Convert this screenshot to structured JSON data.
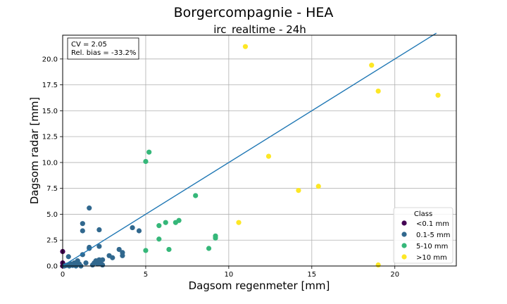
{
  "chart_data": {
    "type": "scatter",
    "title": "Borgercompagnie - HEA",
    "subtitle": "irc_realtime - 24h",
    "xlabel": "Dagsom regenmeter [mm]",
    "ylabel": "Dagsom radar [mm]",
    "xlim": [
      0,
      23.7
    ],
    "ylim": [
      0,
      22.3
    ],
    "x_ticks": [
      "0",
      "5",
      "10",
      "15",
      "20"
    ],
    "y_ticks": [
      "0.0",
      "2.5",
      "5.0",
      "7.5",
      "10.0",
      "12.5",
      "15.0",
      "17.5",
      "20.0"
    ],
    "grid": true,
    "stats": [
      "CV = 2.05",
      "Rel. bias = -33.2%"
    ],
    "fit_line": {
      "slope": 1.0,
      "x": [
        0,
        22.5
      ],
      "color": "#1f77b4"
    },
    "legend": {
      "title": "Class",
      "position": "lower-right"
    },
    "series": [
      {
        "name": "<0.1 mm",
        "color": "#440154",
        "points": [
          [
            0.0,
            0.0
          ],
          [
            0.0,
            0.3
          ],
          [
            0.0,
            1.4
          ],
          [
            0.05,
            0.1
          ]
        ]
      },
      {
        "name": "0.1-5 mm",
        "color": "#31688e",
        "points": [
          [
            0.1,
            0.0
          ],
          [
            0.2,
            0.05
          ],
          [
            0.3,
            0.1
          ],
          [
            0.4,
            0.0
          ],
          [
            0.5,
            0.2
          ],
          [
            0.6,
            0.1
          ],
          [
            0.7,
            0.3
          ],
          [
            0.8,
            0.0
          ],
          [
            0.9,
            0.5
          ],
          [
            1.0,
            0.2
          ],
          [
            1.1,
            0.0
          ],
          [
            0.35,
            0.9
          ],
          [
            0.8,
            0.3
          ],
          [
            0.6,
            0.05
          ],
          [
            1.2,
            4.1
          ],
          [
            1.2,
            3.4
          ],
          [
            1.2,
            1.1
          ],
          [
            1.4,
            0.3
          ],
          [
            1.6,
            1.7
          ],
          [
            1.6,
            1.8
          ],
          [
            1.6,
            5.6
          ],
          [
            1.8,
            0.1
          ],
          [
            1.9,
            0.3
          ],
          [
            2.0,
            0.5
          ],
          [
            2.1,
            0.2
          ],
          [
            2.2,
            0.6
          ],
          [
            2.2,
            1.9
          ],
          [
            2.2,
            3.5
          ],
          [
            2.3,
            0.2
          ],
          [
            2.4,
            0.6
          ],
          [
            2.4,
            0.1
          ],
          [
            2.8,
            1.0
          ],
          [
            3.0,
            0.8
          ],
          [
            3.4,
            1.6
          ],
          [
            3.6,
            1.3
          ],
          [
            3.6,
            1.0
          ],
          [
            4.2,
            3.7
          ],
          [
            4.6,
            3.4
          ]
        ]
      },
      {
        "name": "5-10 mm",
        "color": "#35b779",
        "points": [
          [
            5.0,
            10.1
          ],
          [
            5.2,
            11.0
          ],
          [
            5.0,
            1.5
          ],
          [
            5.8,
            3.9
          ],
          [
            5.8,
            2.6
          ],
          [
            6.2,
            4.2
          ],
          [
            6.4,
            1.6
          ],
          [
            6.8,
            4.2
          ],
          [
            7.0,
            4.4
          ],
          [
            8.0,
            6.8
          ],
          [
            8.8,
            1.7
          ],
          [
            9.2,
            2.9
          ],
          [
            9.2,
            2.7
          ]
        ]
      },
      {
        "name": ">10 mm",
        "color": "#fde725",
        "points": [
          [
            10.6,
            4.2
          ],
          [
            11.0,
            21.2
          ],
          [
            12.4,
            10.6
          ],
          [
            14.2,
            7.3
          ],
          [
            15.4,
            7.7
          ],
          [
            18.6,
            19.4
          ],
          [
            19.0,
            16.9
          ],
          [
            19.0,
            0.1
          ],
          [
            22.6,
            16.5
          ]
        ]
      }
    ]
  }
}
